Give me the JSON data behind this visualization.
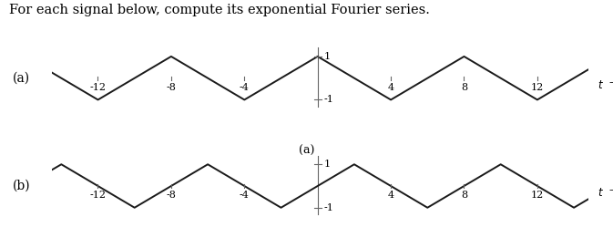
{
  "title_text": "For each signal below, compute its exponential Fourier series.",
  "title_fontsize": 10.5,
  "label_a": "(a)",
  "label_b": "(b)",
  "label_a_bottom": "(a)",
  "x_ticks": [
    -12,
    -8,
    -4,
    4,
    8,
    12
  ],
  "x_min": -14.5,
  "x_max": 14.8,
  "y_min": -1.6,
  "y_max": 1.6,
  "amplitude": 1,
  "period": 8,
  "signal_color": "#1a1a1a",
  "axis_color": "#666666",
  "line_width": 1.4,
  "tick_fontsize": 8,
  "bg_color": "#ffffff"
}
